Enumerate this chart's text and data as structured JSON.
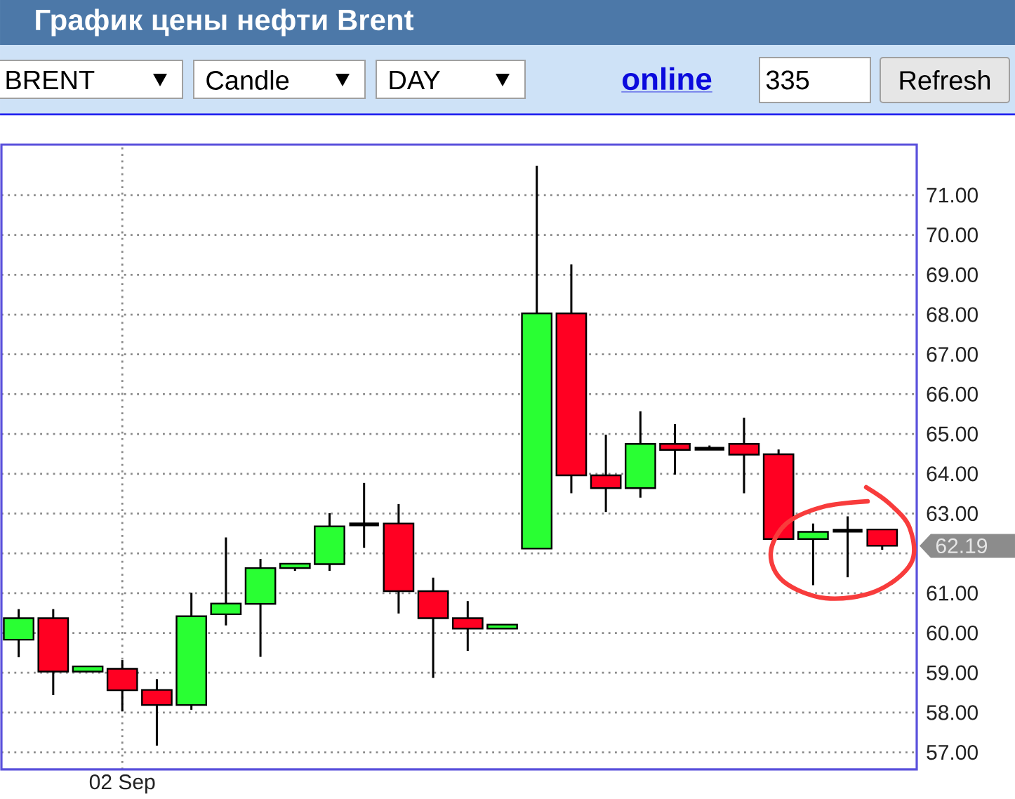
{
  "chart_data": {
    "type": "candlestick",
    "title": "График цены нефти Brent",
    "categories": [
      null,
      null,
      null,
      "02 Sep",
      null,
      null,
      null,
      null,
      null,
      null,
      null,
      null,
      null,
      null,
      null,
      null,
      null,
      null,
      null,
      null,
      null,
      null,
      null,
      null,
      null,
      null
    ],
    "ohlc": [
      [
        59.83,
        60.6,
        59.39,
        60.37
      ],
      [
        60.37,
        60.6,
        58.44,
        59.03
      ],
      [
        59.03,
        59.16,
        59.03,
        59.16
      ],
      [
        59.1,
        59.32,
        58.03,
        58.56
      ],
      [
        58.57,
        58.84,
        57.17,
        58.19
      ],
      [
        58.19,
        61.01,
        58.07,
        60.42
      ],
      [
        60.47,
        62.4,
        60.19,
        60.74
      ],
      [
        60.73,
        61.86,
        59.4,
        61.63
      ],
      [
        61.63,
        61.74,
        61.56,
        61.74
      ],
      [
        61.73,
        63.01,
        61.56,
        62.68
      ],
      [
        62.73,
        63.77,
        62.14,
        62.73
      ],
      [
        62.75,
        63.24,
        60.49,
        61.05
      ],
      [
        61.05,
        61.39,
        58.87,
        60.37
      ],
      [
        60.37,
        60.8,
        59.55,
        60.11
      ],
      [
        60.11,
        60.21,
        60.11,
        60.21
      ],
      [
        62.12,
        71.74,
        62.12,
        68.03
      ],
      [
        68.03,
        69.26,
        63.51,
        63.96
      ],
      [
        63.96,
        64.98,
        63.04,
        63.64
      ],
      [
        63.64,
        65.57,
        63.4,
        64.75
      ],
      [
        64.75,
        65.25,
        63.98,
        64.6
      ],
      [
        64.63,
        64.71,
        64.6,
        64.63
      ],
      [
        64.75,
        65.41,
        63.51,
        64.48
      ],
      [
        64.49,
        64.61,
        62.36,
        62.36
      ],
      [
        62.36,
        62.75,
        61.2,
        62.54
      ],
      [
        62.57,
        62.93,
        61.4,
        62.57
      ],
      [
        62.6,
        62.6,
        62.09,
        62.19
      ]
    ],
    "colors": [
      "#29ff33",
      "#ff0022",
      "#29ff33",
      "#ff0022",
      "#ff0022",
      "#29ff33",
      "#29ff33",
      "#29ff33",
      "#29ff33",
      "#29ff33",
      "#000000",
      "#ff0022",
      "#ff0022",
      "#ff0022",
      "#29ff33",
      "#29ff33",
      "#ff0022",
      "#ff0022",
      "#29ff33",
      "#ff0022",
      "#000000",
      "#ff0022",
      "#ff0022",
      "#29ff33",
      "#000000",
      "#ff0022"
    ],
    "ylim": [
      56.57,
      72.27
    ],
    "yticks": [
      {
        "value": 57,
        "label": "57.00"
      },
      {
        "value": 58,
        "label": "58.00"
      },
      {
        "value": 59,
        "label": "59.00"
      },
      {
        "value": 60,
        "label": "60.00"
      },
      {
        "value": 61,
        "label": "61.00"
      },
      {
        "value": 62,
        "label": null
      },
      {
        "value": 63,
        "label": "63.00"
      },
      {
        "value": 64,
        "label": "64.00"
      },
      {
        "value": 65,
        "label": "65.00"
      },
      {
        "value": 66,
        "label": "66.00"
      },
      {
        "value": 67,
        "label": "67.00"
      },
      {
        "value": 68,
        "label": "68.00"
      },
      {
        "value": 69,
        "label": "69.00"
      },
      {
        "value": 70,
        "label": "70.00"
      },
      {
        "value": 71,
        "label": "71.00"
      }
    ],
    "grid": true,
    "annotations": [
      "BRENT",
      "Candle",
      "DAY",
      "online",
      "335",
      "Refresh",
      "62.19"
    ]
  }
}
